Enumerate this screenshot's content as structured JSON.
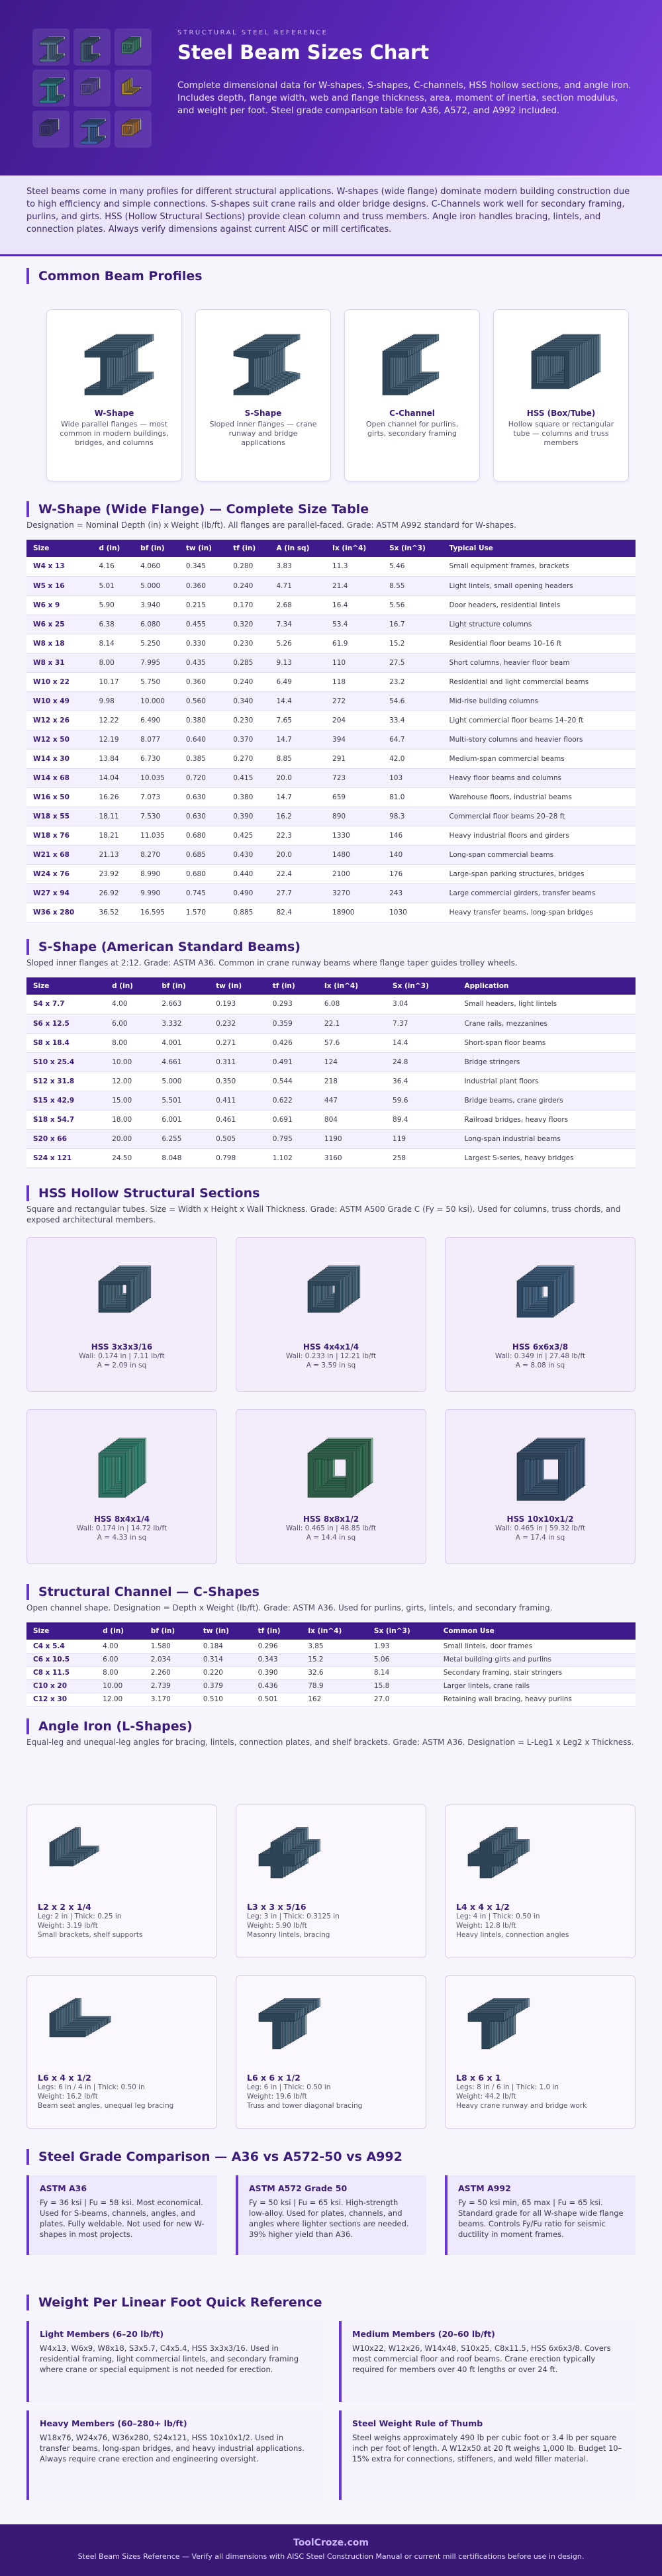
{
  "header": {
    "eyebrow": "STRUCTURAL STEEL REFERENCE",
    "title": "Steel Beam Sizes Chart",
    "description": "Complete dimensional data for W-shapes, S-shapes, C-channels, HSS hollow sections, and angle iron. Includes depth, flange width, web and flange thickness, area, moment of inertia, section modulus, and weight per foot. Steel grade comparison table for A36, A572, and A992 included."
  },
  "intro": {
    "text": "Steel beams come in many profiles for different structural applications. W-shapes (wide flange) dominate modern building construction due to high efficiency and simple connections. S-shapes suit crane rails and older bridge designs. C-Channels work well for secondary framing, purlins, and girts. HSS (Hollow Structural Sections) provide clean column and truss members. Angle iron handles bracing, lintels, and connection plates. Always verify dimensions against current AISC or mill certificates."
  },
  "profiles": {
    "title": "Common Beam Profiles",
    "items": [
      {
        "name": "W-Shape",
        "desc": "Wide parallel flanges — most common in modern buildings, bridges, and columns"
      },
      {
        "name": "S-Shape",
        "desc": "Sloped inner flanges — crane runway and bridge applications"
      },
      {
        "name": "C-Channel",
        "desc": "Open channel for purlins, girts, secondary framing"
      },
      {
        "name": "HSS (Box/Tube)",
        "desc": "Hollow square or rectangular tube — columns and truss members"
      }
    ]
  },
  "w_shapes": {
    "title": "W-Shape (Wide Flange) — Complete Size Table",
    "note": "Designation = Nominal Depth (in) x Weight (lb/ft). All flanges are parallel-faced. Grade: ASTM A992 standard for W-shapes.",
    "columns": [
      "Size",
      "d (in)",
      "bf (in)",
      "tw (in)",
      "tf (in)",
      "A (in sq)",
      "Ix (in^4)",
      "Sx (in^3)",
      "Typical Use"
    ],
    "rows": [
      [
        "W4 x 13",
        "4.16",
        "4.060",
        "0.345",
        "0.280",
        "3.83",
        "11.3",
        "5.46",
        "Small equipment frames, brackets"
      ],
      [
        "W5 x 16",
        "5.01",
        "5.000",
        "0.360",
        "0.240",
        "4.71",
        "21.4",
        "8.55",
        "Light lintels, small opening headers"
      ],
      [
        "W6 x 9",
        "5.90",
        "3.940",
        "0.215",
        "0.170",
        "2.68",
        "16.4",
        "5.56",
        "Door headers, residential lintels"
      ],
      [
        "W6 x 25",
        "6.38",
        "6.080",
        "0.455",
        "0.320",
        "7.34",
        "53.4",
        "16.7",
        "Light structure columns"
      ],
      [
        "W8 x 18",
        "8.14",
        "5.250",
        "0.330",
        "0.230",
        "5.26",
        "61.9",
        "15.2",
        "Residential floor beams 10–16 ft"
      ],
      [
        "W8 x 31",
        "8.00",
        "7.995",
        "0.435",
        "0.285",
        "9.13",
        "110",
        "27.5",
        "Short columns, heavier floor beam"
      ],
      [
        "W10 x 22",
        "10.17",
        "5.750",
        "0.360",
        "0.240",
        "6.49",
        "118",
        "23.2",
        "Residential and light commercial beams"
      ],
      [
        "W10 x 49",
        "9.98",
        "10.000",
        "0.560",
        "0.340",
        "14.4",
        "272",
        "54.6",
        "Mid-rise building columns"
      ],
      [
        "W12 x 26",
        "12.22",
        "6.490",
        "0.380",
        "0.230",
        "7.65",
        "204",
        "33.4",
        "Light commercial floor beams 14–20 ft"
      ],
      [
        "W12 x 50",
        "12.19",
        "8.077",
        "0.640",
        "0.370",
        "14.7",
        "394",
        "64.7",
        "Multi-story columns and heavier floors"
      ],
      [
        "W14 x 30",
        "13.84",
        "6.730",
        "0.385",
        "0.270",
        "8.85",
        "291",
        "42.0",
        "Medium-span commercial beams"
      ],
      [
        "W14 x 68",
        "14.04",
        "10.035",
        "0.720",
        "0.415",
        "20.0",
        "723",
        "103",
        "Heavy floor beams and columns"
      ],
      [
        "W16 x 50",
        "16.26",
        "7.073",
        "0.630",
        "0.380",
        "14.7",
        "659",
        "81.0",
        "Warehouse floors, industrial beams"
      ],
      [
        "W18 x 55",
        "18.11",
        "7.530",
        "0.630",
        "0.390",
        "16.2",
        "890",
        "98.3",
        "Commercial floor beams 20–28 ft"
      ],
      [
        "W18 x 76",
        "18.21",
        "11.035",
        "0.680",
        "0.425",
        "22.3",
        "1330",
        "146",
        "Heavy industrial floors and girders"
      ],
      [
        "W21 x 68",
        "21.13",
        "8.270",
        "0.685",
        "0.430",
        "20.0",
        "1480",
        "140",
        "Long-span commercial beams"
      ],
      [
        "W24 x 76",
        "23.92",
        "8.990",
        "0.680",
        "0.440",
        "22.4",
        "2100",
        "176",
        "Large-span parking structures, bridges"
      ],
      [
        "W27 x 94",
        "26.92",
        "9.990",
        "0.745",
        "0.490",
        "27.7",
        "3270",
        "243",
        "Large commercial girders, transfer beams"
      ],
      [
        "W36 x 280",
        "36.52",
        "16.595",
        "1.570",
        "0.885",
        "82.4",
        "18900",
        "1030",
        "Heavy transfer beams, long-span bridges"
      ]
    ]
  },
  "s_shapes": {
    "title": "S-Shape (American Standard Beams)",
    "note": "Sloped inner flanges at 2:12. Grade: ASTM A36. Common in crane runway beams where flange taper guides trolley wheels.",
    "columns": [
      "Size",
      "d (in)",
      "bf (in)",
      "tw (in)",
      "tf (in)",
      "Ix (in^4)",
      "Sx (in^3)",
      "Application"
    ],
    "rows": [
      [
        "S4 x 7.7",
        "4.00",
        "2.663",
        "0.193",
        "0.293",
        "6.08",
        "3.04",
        "Small headers, light lintels"
      ],
      [
        "S6 x 12.5",
        "6.00",
        "3.332",
        "0.232",
        "0.359",
        "22.1",
        "7.37",
        "Crane rails, mezzanines"
      ],
      [
        "S8 x 18.4",
        "8.00",
        "4.001",
        "0.271",
        "0.426",
        "57.6",
        "14.4",
        "Short-span floor beams"
      ],
      [
        "S10 x 25.4",
        "10.00",
        "4.661",
        "0.311",
        "0.491",
        "124",
        "24.8",
        "Bridge stringers"
      ],
      [
        "S12 x 31.8",
        "12.00",
        "5.000",
        "0.350",
        "0.544",
        "218",
        "36.4",
        "Industrial plant floors"
      ],
      [
        "S15 x 42.9",
        "15.00",
        "5.501",
        "0.411",
        "0.622",
        "447",
        "59.6",
        "Bridge beams, crane girders"
      ],
      [
        "S18 x 54.7",
        "18.00",
        "6.001",
        "0.461",
        "0.691",
        "804",
        "89.4",
        "Railroad bridges, heavy floors"
      ],
      [
        "S20 x 66",
        "20.00",
        "6.255",
        "0.505",
        "0.795",
        "1190",
        "119",
        "Long-span industrial beams"
      ],
      [
        "S24 x 121",
        "24.50",
        "8.048",
        "0.798",
        "1.102",
        "3160",
        "258",
        "Largest S-series, heavy bridges"
      ]
    ]
  },
  "hss": {
    "title": "HSS Hollow Structural Sections",
    "description": "Square and rectangular tubes. Size = Width x Height x Wall Thickness. Grade: ASTM A500 Grade C (Fy = 50 ksi). Used for columns, truss chords, and exposed architectural members.",
    "items": [
      {
        "name": "HSS 3x3x3/16",
        "line1": "Wall: 0.174 in | 7.11 lb/ft",
        "line2": "A = 2.09 in sq"
      },
      {
        "name": "HSS 4x4x1/4",
        "line1": "Wall: 0.233 in | 12.21 lb/ft",
        "line2": "A = 3.59 in sq"
      },
      {
        "name": "HSS 6x6x3/8",
        "line1": "Wall: 0.349 in | 27.48 lb/ft",
        "line2": "A = 8.08 in sq"
      },
      {
        "name": "HSS 8x4x1/4",
        "line1": "Wall: 0.174 in | 14.72 lb/ft",
        "line2": "A = 4.33 in sq"
      },
      {
        "name": "HSS 8x8x1/2",
        "line1": "Wall: 0.465 in | 48.85 lb/ft",
        "line2": "A = 14.4 in sq"
      },
      {
        "name": "HSS 10x10x1/2",
        "line1": "Wall: 0.465 in | 59.32 lb/ft",
        "line2": "A = 17.4 in sq"
      }
    ]
  },
  "channels": {
    "title": "Structural Channel — C-Shapes",
    "note": "Open channel shape. Designation = Depth x Weight (lb/ft). Grade: ASTM A36. Used for purlins, girts, lintels, and secondary framing.",
    "columns": [
      "Size",
      "d (in)",
      "bf (in)",
      "tw (in)",
      "tf (in)",
      "Ix (in^4)",
      "Sx (in^3)",
      "Common Use"
    ],
    "rows": [
      [
        "C4 x 5.4",
        "4.00",
        "1.580",
        "0.184",
        "0.296",
        "3.85",
        "1.93",
        "Small lintels, door frames"
      ],
      [
        "C6 x 10.5",
        "6.00",
        "2.034",
        "0.314",
        "0.343",
        "15.2",
        "5.06",
        "Metal building girts and purlins"
      ],
      [
        "C8 x 11.5",
        "8.00",
        "2.260",
        "0.220",
        "0.390",
        "32.6",
        "8.14",
        "Secondary framing, stair stringers"
      ],
      [
        "C10 x 20",
        "10.00",
        "2.739",
        "0.379",
        "0.436",
        "78.9",
        "15.8",
        "Larger lintels, crane rails"
      ],
      [
        "C12 x 30",
        "12.00",
        "3.170",
        "0.510",
        "0.501",
        "162",
        "27.0",
        "Retaining wall bracing, heavy purlins"
      ]
    ]
  },
  "angles": {
    "title": "Angle Iron (L-Shapes)",
    "description": "Equal-leg and unequal-leg angles for bracing, lintels, connection plates, and shelf brackets. Grade: ASTM A36. Designation = L-Leg1 x Leg2 x Thickness.",
    "items": [
      {
        "name": "L2 x 2 x 1/4",
        "line1": "Leg: 2 in | Thick: 0.25 in",
        "line2": "Weight: 3.19 lb/ft",
        "use": "Small brackets, shelf supports"
      },
      {
        "name": "L3 x 3 x 5/16",
        "line1": "Leg: 3 in | Thick: 0.3125 in",
        "line2": "Weight: 5.90 lb/ft",
        "use": "Masonry lintels, bracing"
      },
      {
        "name": "L4 x 4 x 1/2",
        "line1": "Leg: 4 in | Thick: 0.50 in",
        "line2": "Weight: 12.8 lb/ft",
        "use": "Heavy lintels, connection angles"
      },
      {
        "name": "L6 x 4 x 1/2",
        "line1": "Legs: 6 in / 4 in | Thick: 0.50 in",
        "line2": "Weight: 16.2 lb/ft",
        "use": "Beam seat angles, unequal leg bracing"
      },
      {
        "name": "L6 x 6 x 1/2",
        "line1": "Leg: 6 in | Thick: 0.50 in",
        "line2": "Weight: 19.6 lb/ft",
        "use": "Truss and tower diagonal bracing"
      },
      {
        "name": "L8 x 6 x 1",
        "line1": "Legs: 8 in / 6 in | Thick: 1.0 in",
        "line2": "Weight: 44.2 lb/ft",
        "use": "Heavy crane runway and bridge work"
      }
    ]
  },
  "grades": {
    "title": "Steel Grade Comparison — A36 vs A572-50 vs A992",
    "items": [
      {
        "name": "ASTM A36",
        "text": "Fy = 36 ksi | Fu = 58 ksi. Most economical. Used for S-beams, channels, angles, and plates. Fully weldable. Not used for new W-shapes in most projects."
      },
      {
        "name": "ASTM A572 Grade 50",
        "text": "Fy = 50 ksi | Fu = 65 ksi. High-strength low-alloy. Used for plates, channels, and angles where lighter sections are needed. 39% higher yield than A36."
      },
      {
        "name": "ASTM A992",
        "text": "Fy = 50 ksi min, 65 max | Fu = 65 ksi. Standard grade for all W-shape wide flange beams. Controls Fy/Fu ratio for seismic ductility in moment frames."
      }
    ]
  },
  "weights": {
    "title": "Weight Per Linear Foot Quick Reference",
    "items": [
      {
        "name": "Light Members (6–20 lb/ft)",
        "text": "W4x13, W6x9, W8x18, S3x5.7, C4x5.4, HSS 3x3x3/16. Used in residential framing, light commercial lintels, and secondary framing where crane or special equipment is not needed for erection."
      },
      {
        "name": "Medium Members (20–60 lb/ft)",
        "text": "W10x22, W12x26, W14x48, S10x25, C8x11.5, HSS 6x6x3/8. Covers most commercial floor and roof beams. Crane erection typically required for members over 40 ft lengths or over 24 ft."
      },
      {
        "name": "Heavy Members (60–280+ lb/ft)",
        "text": "W18x76, W24x76, W36x280, S24x121, HSS 10x10x1/2. Used in transfer beams, long-span bridges, and heavy industrial applications. Always require crane erection and engineering oversight."
      },
      {
        "name": "Steel Weight Rule of Thumb",
        "text": "Steel weighs approximately 490 lb per cubic foot or 3.4 lb per square inch per foot of length. A W12x50 at 20 ft weighs 1,000 lb. Budget 10–15% extra for connections, stiffeners, and weld filler material."
      }
    ]
  },
  "footer": {
    "brand": "ToolCroze.com",
    "text": "Steel Beam Sizes Reference — Verify all dimensions with AISC Steel Construction Manual or current mill certifications before use in design."
  }
}
